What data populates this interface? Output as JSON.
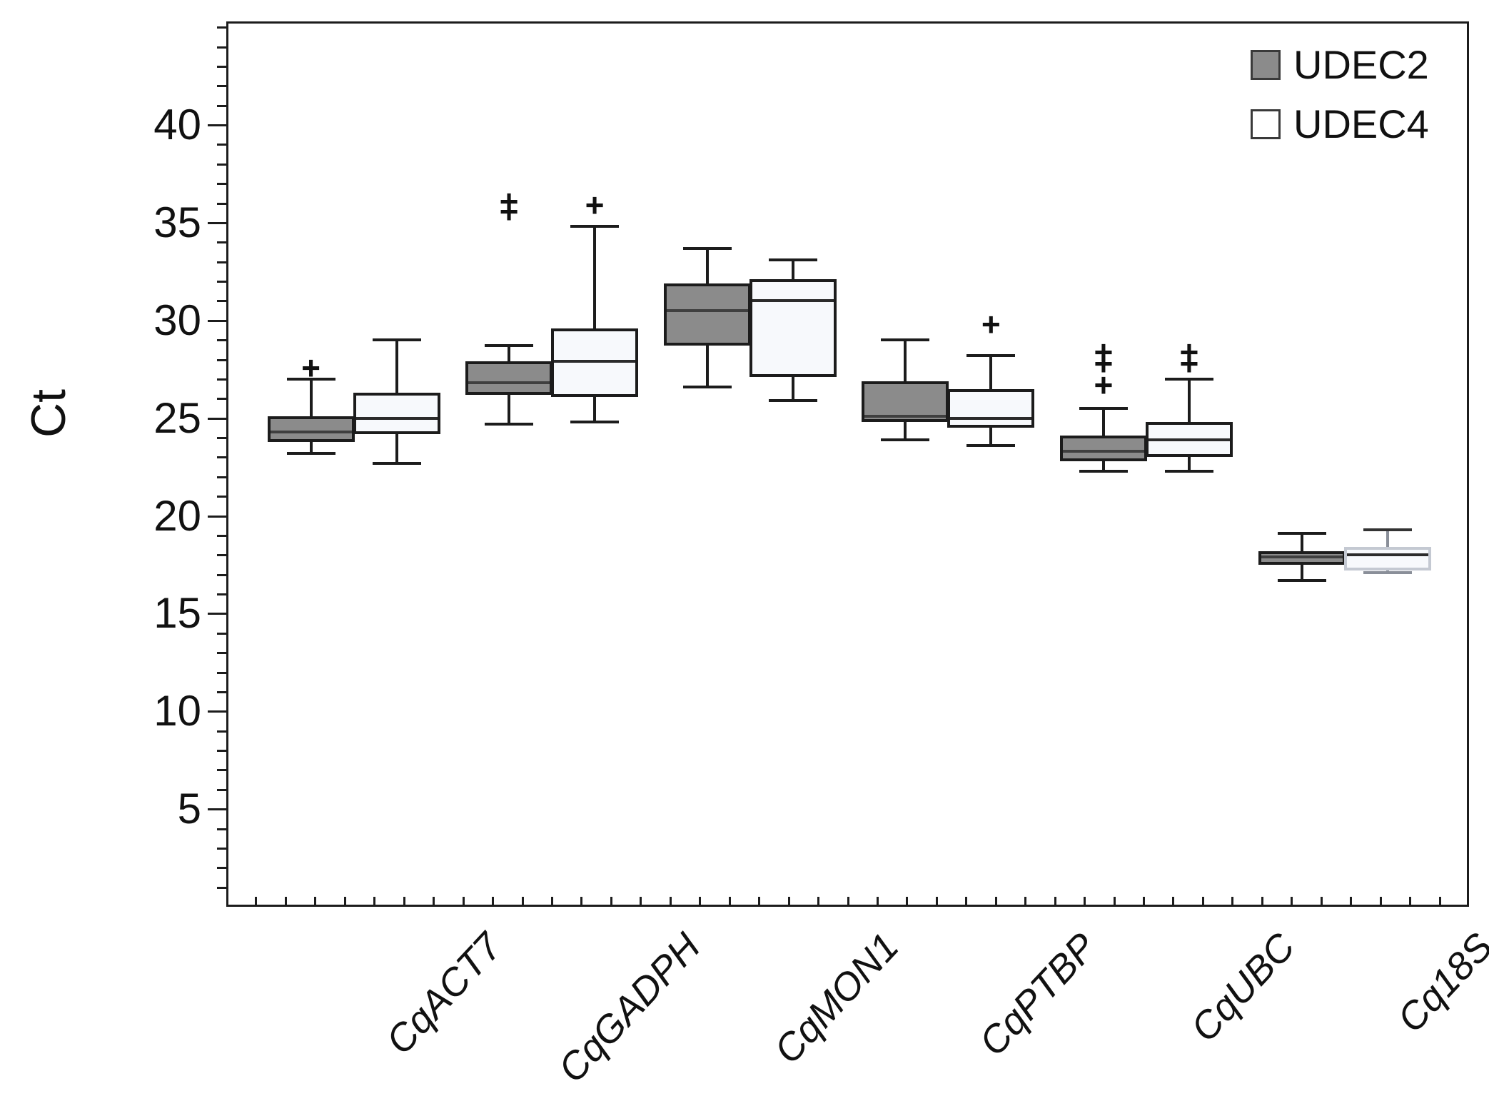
{
  "figure": {
    "background": "#ffffff"
  },
  "legend": {
    "items": [
      {
        "label": "UDEC2",
        "fill": "#8b8b8b",
        "border": "#3a3a3a"
      },
      {
        "label": "UDEC4",
        "fill": "#ffffff",
        "border": "#3a3a3a"
      }
    ]
  },
  "colors": {
    "box_border": "#1c1c1c",
    "median_on_gray": "#3f3f3f",
    "median_on_white": "#2b2b2b",
    "faint_border": "#c4c9d2",
    "faint_whisker": "#8a8f99",
    "axis": "#1c1c1c"
  },
  "chart_data": {
    "type": "boxplot",
    "title": "",
    "xlabel": "",
    "ylabel": "Ct",
    "ylim": [
      0,
      45.3
    ],
    "yticks": [
      5,
      10,
      15,
      20,
      25,
      30,
      35,
      40
    ],
    "minor_tick_step": 1,
    "grid": false,
    "legend_position": "top-right-inside",
    "categories": [
      "CqACT7",
      "CqGADPH",
      "CqMON1",
      "CqPTBP",
      "CqUBC",
      "Cq18S"
    ],
    "series": [
      {
        "name": "UDEC2",
        "fill": "#8b8b8b",
        "boxes": [
          {
            "category": "CqACT7",
            "whisker_low": 23.2,
            "q1": 23.8,
            "median": 24.3,
            "q3": 25.1,
            "whisker_high": 27.0,
            "outliers": [
              27.6
            ]
          },
          {
            "category": "CqGADPH",
            "whisker_low": 24.7,
            "q1": 26.2,
            "median": 26.8,
            "q3": 27.9,
            "whisker_high": 28.7,
            "outliers": [
              35.6,
              36.1
            ]
          },
          {
            "category": "CqMON1",
            "whisker_low": 26.6,
            "q1": 28.7,
            "median": 30.5,
            "q3": 31.9,
            "whisker_high": 33.7,
            "outliers": []
          },
          {
            "category": "CqPTBP",
            "whisker_low": 23.9,
            "q1": 24.8,
            "median": 25.1,
            "q3": 26.9,
            "whisker_high": 29.0,
            "outliers": []
          },
          {
            "category": "CqUBC",
            "whisker_low": 22.3,
            "q1": 22.8,
            "median": 23.3,
            "q3": 24.1,
            "whisker_high": 25.5,
            "outliers": [
              26.7,
              27.8,
              28.4
            ]
          },
          {
            "category": "Cq18S",
            "whisker_low": 16.7,
            "q1": 17.5,
            "median": 17.9,
            "q3": 18.2,
            "whisker_high": 19.1,
            "outliers": []
          }
        ]
      },
      {
        "name": "UDEC4",
        "fill": "#f7f9fc",
        "boxes": [
          {
            "category": "CqACT7",
            "whisker_low": 22.7,
            "q1": 24.2,
            "median": 25.0,
            "q3": 26.3,
            "whisker_high": 29.0,
            "outliers": []
          },
          {
            "category": "CqGADPH",
            "whisker_low": 24.8,
            "q1": 26.1,
            "median": 27.9,
            "q3": 29.6,
            "whisker_high": 34.8,
            "outliers": [
              35.9
            ]
          },
          {
            "category": "CqMON1",
            "whisker_low": 25.9,
            "q1": 27.1,
            "median": 31.0,
            "q3": 32.1,
            "whisker_high": 33.1,
            "outliers": []
          },
          {
            "category": "CqPTBP",
            "whisker_low": 23.6,
            "q1": 24.5,
            "median": 25.0,
            "q3": 26.5,
            "whisker_high": 28.2,
            "outliers": [
              29.8
            ]
          },
          {
            "category": "CqUBC",
            "whisker_low": 22.3,
            "q1": 23.0,
            "median": 23.9,
            "q3": 24.8,
            "whisker_high": 27.0,
            "outliers": [
              27.8,
              28.4
            ]
          },
          {
            "category": "Cq18S",
            "whisker_low": 17.1,
            "q1": 17.2,
            "median": 18.0,
            "q3": 18.4,
            "whisker_high": 19.3,
            "outliers": [],
            "faint": true
          }
        ]
      }
    ]
  }
}
